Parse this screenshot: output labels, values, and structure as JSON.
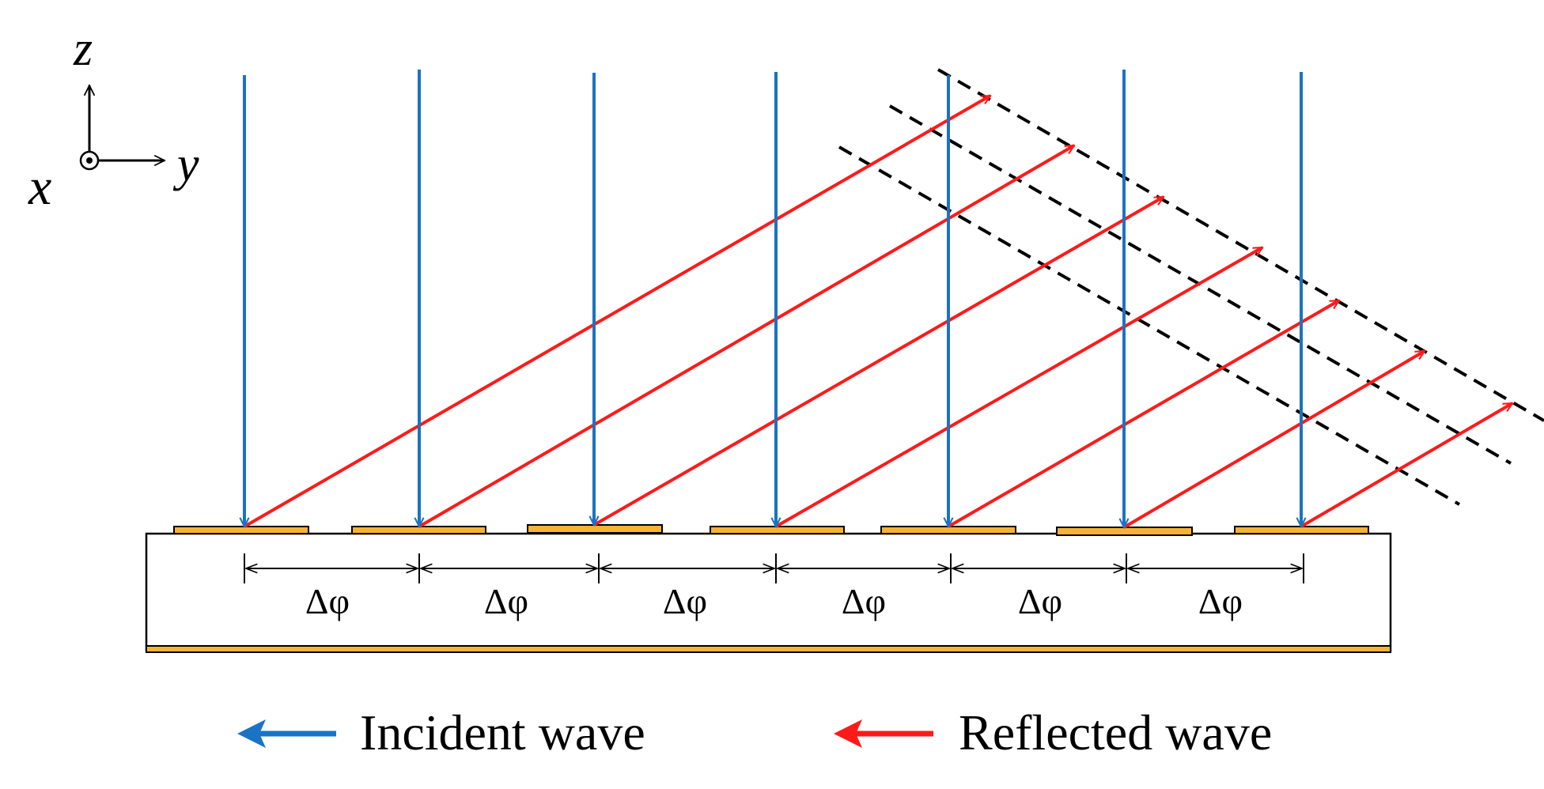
{
  "axes": {
    "z_label": "z",
    "y_label": "y",
    "x_label": "x"
  },
  "phase_label": "Δφ",
  "element_count": 7,
  "legend": {
    "incident_label": "Incident wave",
    "reflected_label": "Reflected wave"
  },
  "colors": {
    "incident": "#1a73c4",
    "reflected": "#ff1a1a",
    "patch_fill": "#f5b335",
    "substrate_fill": "#ffffff",
    "outline": "#000000"
  }
}
